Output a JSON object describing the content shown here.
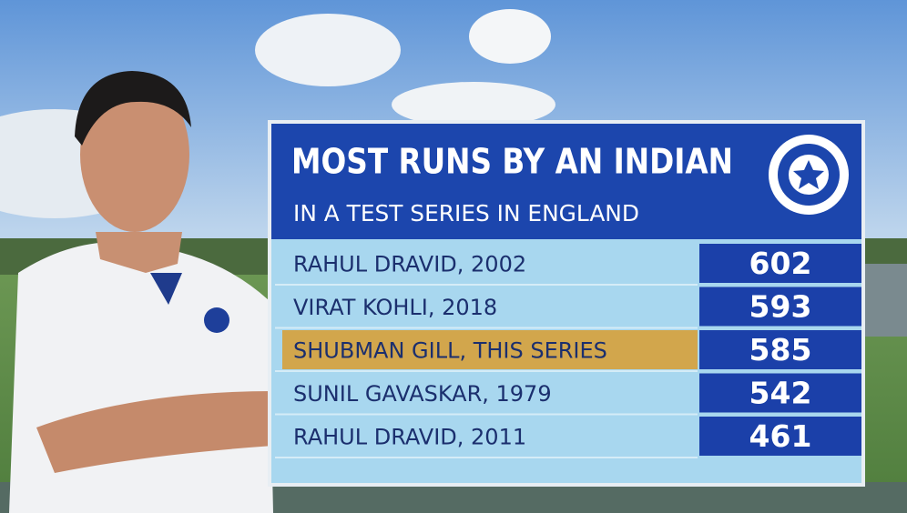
{
  "header": {
    "title": "MOST RUNS BY AN INDIAN",
    "subtitle": "IN A TEST SERIES IN ENGLAND"
  },
  "table": {
    "rows": [
      {
        "label": "RAHUL DRAVID, 2002",
        "value": 602,
        "highlight": false
      },
      {
        "label": "VIRAT KOHLI, 2018",
        "value": 593,
        "highlight": false
      },
      {
        "label": "SHUBMAN GILL, THIS SERIES",
        "value": 585,
        "highlight": true
      },
      {
        "label": "SUNIL GAVASKAR, 1979",
        "value": 542,
        "highlight": false
      },
      {
        "label": "RAHUL DRAVID, 2011",
        "value": 461,
        "highlight": false
      }
    ]
  }
}
